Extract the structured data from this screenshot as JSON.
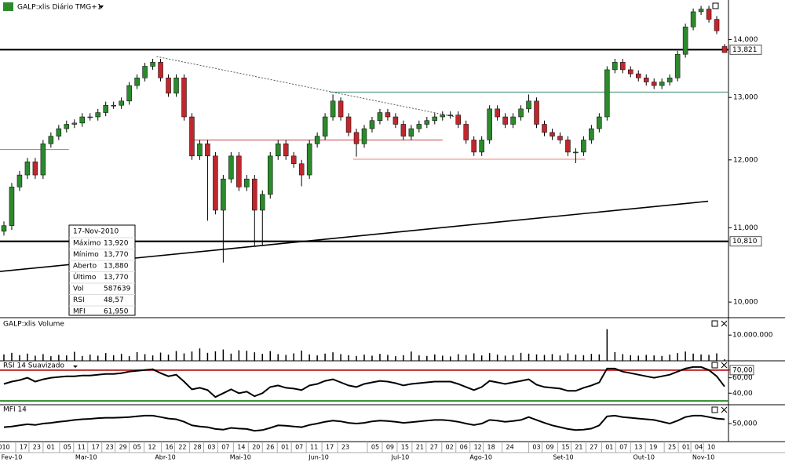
{
  "chart_data": {
    "type": "candlestick",
    "title": "GALP:xlis Diário TMG+1",
    "log_scale": true,
    "ylim": [
      9.802,
      14.73
    ],
    "yticks": [
      {
        "value": 14,
        "label": "14,000"
      },
      {
        "value": 13,
        "label": "13,000"
      },
      {
        "value": 12,
        "label": "12,000"
      },
      {
        "value": 11,
        "label": "11,000"
      },
      {
        "value": 10,
        "label": "10,000"
      }
    ],
    "xlim": [
      0,
      93
    ],
    "xticks": [
      {
        "value": 0.5,
        "label": "010"
      },
      {
        "value": 3.0,
        "label": "17"
      },
      {
        "value": 4.7,
        "label": "23"
      },
      {
        "value": 6.5,
        "label": "01"
      },
      {
        "value": 8.6,
        "label": "05"
      },
      {
        "value": 10.4,
        "label": "11"
      },
      {
        "value": 12.2,
        "label": "17"
      },
      {
        "value": 14.0,
        "label": "23"
      },
      {
        "value": 15.7,
        "label": "29"
      },
      {
        "value": 17.5,
        "label": "05"
      },
      {
        "value": 19.4,
        "label": "12"
      },
      {
        "value": 21.6,
        "label": "16"
      },
      {
        "value": 23.3,
        "label": "22"
      },
      {
        "value": 25.2,
        "label": "28"
      },
      {
        "value": 27.0,
        "label": "03"
      },
      {
        "value": 28.8,
        "label": "07"
      },
      {
        "value": 30.8,
        "label": "14"
      },
      {
        "value": 32.7,
        "label": "20"
      },
      {
        "value": 34.5,
        "label": "26"
      },
      {
        "value": 36.4,
        "label": "01"
      },
      {
        "value": 38.2,
        "label": "07"
      },
      {
        "value": 40.1,
        "label": "11"
      },
      {
        "value": 42.1,
        "label": "17"
      },
      {
        "value": 44.1,
        "label": "23"
      },
      {
        "value": 47.9,
        "label": "05"
      },
      {
        "value": 49.8,
        "label": "09"
      },
      {
        "value": 51.7,
        "label": "15"
      },
      {
        "value": 53.6,
        "label": "21"
      },
      {
        "value": 55.4,
        "label": "27"
      },
      {
        "value": 57.4,
        "label": "02"
      },
      {
        "value": 59.2,
        "label": "06"
      },
      {
        "value": 61.0,
        "label": "12"
      },
      {
        "value": 62.7,
        "label": "18"
      },
      {
        "value": 65.1,
        "label": "24"
      },
      {
        "value": 68.5,
        "label": "03"
      },
      {
        "value": 70.2,
        "label": "09"
      },
      {
        "value": 72.2,
        "label": "15"
      },
      {
        "value": 73.9,
        "label": "21"
      },
      {
        "value": 75.8,
        "label": "27"
      },
      {
        "value": 77.8,
        "label": "01"
      },
      {
        "value": 79.6,
        "label": "07"
      },
      {
        "value": 81.5,
        "label": "13"
      },
      {
        "value": 83.4,
        "label": "19"
      },
      {
        "value": 85.8,
        "label": "25"
      },
      {
        "value": 87.6,
        "label": "01"
      },
      {
        "value": 89.2,
        "label": "04"
      },
      {
        "value": 90.8,
        "label": "10"
      }
    ],
    "month_ticks": [
      {
        "value": 1.5,
        "label": "Fev-10"
      },
      {
        "value": 11.0,
        "label": "Mar-10"
      },
      {
        "value": 21.1,
        "label": "Abr-10"
      },
      {
        "value": 30.7,
        "label": "Mai-10"
      },
      {
        "value": 40.7,
        "label": "Jun-10"
      },
      {
        "value": 51.1,
        "label": "Jul-10"
      },
      {
        "value": 61.4,
        "label": "Ago-10"
      },
      {
        "value": 71.9,
        "label": "Set-10"
      },
      {
        "value": 82.2,
        "label": "Out-10"
      },
      {
        "value": 89.8,
        "label": "Nov-10"
      }
    ],
    "up_color": "#2b8a2b",
    "down_color": "#c0272d",
    "open": [
      10.95,
      11.03,
      11.59,
      11.77,
      11.97,
      11.77,
      12.25,
      12.37,
      12.49,
      12.56,
      12.58,
      12.68,
      12.68,
      12.75,
      12.87,
      12.87,
      12.94,
      13.2,
      13.33,
      13.53,
      13.6,
      13.33,
      13.07,
      13.33,
      12.68,
      12.06,
      12.25,
      12.06,
      11.25,
      11.71,
      12.06,
      11.59,
      11.71,
      11.25,
      11.48,
      12.06,
      12.25,
      12.06,
      11.94,
      11.77,
      12.25,
      12.37,
      12.68,
      12.94,
      12.68,
      12.43,
      12.25,
      12.49,
      12.62,
      12.75,
      12.68,
      12.56,
      12.37,
      12.49,
      12.56,
      12.62,
      12.68,
      12.71,
      12.71,
      12.56,
      12.31,
      12.12,
      12.31,
      12.81,
      12.68,
      12.56,
      12.68,
      12.81,
      12.94,
      12.56,
      12.43,
      12.37,
      12.31,
      12.12,
      12.12,
      12.31,
      12.49,
      12.68,
      13.47,
      13.6,
      13.47,
      13.4,
      13.33,
      13.26,
      13.2,
      13.26,
      13.33,
      13.74,
      14.23,
      14.51,
      14.56,
      14.37,
      13.88
    ],
    "high": [
      11.09,
      11.65,
      11.83,
      12.03,
      12.03,
      12.31,
      12.43,
      12.55,
      12.62,
      12.64,
      12.74,
      12.74,
      12.81,
      12.93,
      12.93,
      13.0,
      13.26,
      13.39,
      13.59,
      13.66,
      13.66,
      13.39,
      13.39,
      13.39,
      12.74,
      12.31,
      12.31,
      12.12,
      11.77,
      12.12,
      12.12,
      11.77,
      11.77,
      11.54,
      12.12,
      12.31,
      12.31,
      12.12,
      12.0,
      12.31,
      12.43,
      12.74,
      13.05,
      13.0,
      12.74,
      12.49,
      12.55,
      12.68,
      12.81,
      12.81,
      12.74,
      12.62,
      12.55,
      12.62,
      12.68,
      12.74,
      12.77,
      12.77,
      12.77,
      12.62,
      12.37,
      12.37,
      12.87,
      12.87,
      12.74,
      12.74,
      12.87,
      13.05,
      13.0,
      12.62,
      12.49,
      12.43,
      12.37,
      12.18,
      12.37,
      12.55,
      12.74,
      13.53,
      13.66,
      13.66,
      13.53,
      13.46,
      13.39,
      13.32,
      13.32,
      13.39,
      13.8,
      14.29,
      14.57,
      14.62,
      14.62,
      14.43,
      13.92
    ],
    "low": [
      10.89,
      10.97,
      11.53,
      11.71,
      11.71,
      11.71,
      12.19,
      12.31,
      12.43,
      12.5,
      12.52,
      12.62,
      12.62,
      12.69,
      12.81,
      12.81,
      12.88,
      13.14,
      13.27,
      13.47,
      13.27,
      13.01,
      13.01,
      12.62,
      12.0,
      12.0,
      11.1,
      11.19,
      10.52,
      11.65,
      11.53,
      11.53,
      10.75,
      10.75,
      11.42,
      12.0,
      12.0,
      11.88,
      11.6,
      11.71,
      12.19,
      12.31,
      12.62,
      12.62,
      12.37,
      12.05,
      12.19,
      12.43,
      12.56,
      12.62,
      12.5,
      12.31,
      12.31,
      12.43,
      12.5,
      12.56,
      12.62,
      12.65,
      12.5,
      12.25,
      12.06,
      12.06,
      12.25,
      12.62,
      12.5,
      12.5,
      12.62,
      12.75,
      12.5,
      12.37,
      12.31,
      12.25,
      12.06,
      11.95,
      12.06,
      12.25,
      12.43,
      12.62,
      13.41,
      13.41,
      13.34,
      13.27,
      13.2,
      13.14,
      13.14,
      13.2,
      13.27,
      13.68,
      14.17,
      14.45,
      14.31,
      14.1,
      13.77
    ],
    "close": [
      11.03,
      11.59,
      11.77,
      11.97,
      11.77,
      12.25,
      12.37,
      12.49,
      12.56,
      12.58,
      12.68,
      12.68,
      12.75,
      12.87,
      12.87,
      12.94,
      13.2,
      13.33,
      13.53,
      13.6,
      13.33,
      13.07,
      13.33,
      12.68,
      12.06,
      12.25,
      12.06,
      11.25,
      11.71,
      12.06,
      11.59,
      11.71,
      11.25,
      11.48,
      12.06,
      12.25,
      12.06,
      11.94,
      11.77,
      12.25,
      12.37,
      12.68,
      12.94,
      12.68,
      12.43,
      12.25,
      12.49,
      12.62,
      12.75,
      12.68,
      12.56,
      12.37,
      12.49,
      12.56,
      12.62,
      12.68,
      12.71,
      12.71,
      12.56,
      12.31,
      12.12,
      12.31,
      12.81,
      12.68,
      12.56,
      12.68,
      12.81,
      12.94,
      12.56,
      12.43,
      12.37,
      12.31,
      12.12,
      12.12,
      12.31,
      12.49,
      12.68,
      13.47,
      13.6,
      13.47,
      13.4,
      13.33,
      13.26,
      13.2,
      13.26,
      13.33,
      13.74,
      14.23,
      14.51,
      14.56,
      14.37,
      14.16,
      13.77
    ],
    "levels": [
      {
        "value": 13.821,
        "label": "13,821"
      },
      {
        "value": 10.81,
        "label": "10,810"
      }
    ],
    "trendlines": [
      {
        "x": [
          0,
          90.4
        ],
        "y": [
          10.4,
          11.38
        ],
        "color": "#000",
        "dash": false
      },
      {
        "x": [
          20.0,
          58.1
        ],
        "y": [
          13.7,
          12.68
        ],
        "color": "#555",
        "dash": true
      },
      {
        "x": [
          0,
          8.8
        ],
        "y": [
          12.16,
          12.16
        ],
        "color": "#888",
        "dash": false
      },
      {
        "x": [
          24.8,
          56.5
        ],
        "y": [
          12.31,
          12.31
        ],
        "color": "#c04040",
        "dash": false
      },
      {
        "x": [
          45.1,
          74.7
        ],
        "y": [
          12.01,
          12.01
        ],
        "color": "#f08080",
        "dash": false
      },
      {
        "x": [
          42.1,
          93
        ],
        "y": [
          13.09,
          13.09
        ],
        "color": "#3a8a6a",
        "dash": false
      }
    ],
    "info": {
      "date": "17-Nov-2010",
      "rows": [
        [
          "Máximo",
          "13,920"
        ],
        [
          "Mínimo",
          "13,770"
        ],
        [
          "Aberto",
          "13,880"
        ],
        [
          "Último",
          "13,770"
        ],
        [
          "Vol",
          "587639"
        ],
        [
          "RSI",
          "48,57"
        ],
        [
          "MFI",
          "61,950"
        ]
      ]
    },
    "panels": [
      {
        "type": "bar",
        "title": "GALP:xlis Volume",
        "color": "#000",
        "ylim": [
          0,
          12500000
        ],
        "yticks": [
          {
            "value": 10000000,
            "label": "10.000.000"
          }
        ],
        "values": [
          2500000,
          3100000,
          2200000,
          2800000,
          2000000,
          2600000,
          1800000,
          2300000,
          2100000,
          3500000,
          1900000,
          2400000,
          2000000,
          3000000,
          2200000,
          2700000,
          1800000,
          3400000,
          2600000,
          2100000,
          3200000,
          2400000,
          3800000,
          2900000,
          3600000,
          4800000,
          3100000,
          3700000,
          4400000,
          2800000,
          4100000,
          3900000,
          3300000,
          2700000,
          3800000,
          2600000,
          2300000,
          2900000,
          4000000,
          2500000,
          2100000,
          2800000,
          3300000,
          2600000,
          2200000,
          1900000,
          2400000,
          2000000,
          2700000,
          2300000,
          1800000,
          2200000,
          3600000,
          2100000,
          1900000,
          2500000,
          2000000,
          1700000,
          2600000,
          2300000,
          2900000,
          2100000,
          3000000,
          2400000,
          2000000,
          2200000,
          3100000,
          2800000,
          2500000,
          2300000,
          2600000,
          2100000,
          2900000,
          2400000,
          2200000,
          2700000,
          2500000,
          12300000,
          3400000,
          2600000,
          2200000,
          2000000,
          2300000,
          2100000,
          1900000,
          2400000,
          3000000,
          3600000,
          2800000,
          2500000,
          2300000,
          2900000,
          587639
        ]
      },
      {
        "type": "line",
        "title": "RSI 14 Suavizado",
        "color": "#000",
        "ylim": [
          26,
          80
        ],
        "yticks": [
          {
            "value": 70,
            "label": "70,00"
          },
          {
            "value": 60,
            "label": "60,00"
          },
          {
            "value": 40,
            "label": "40,00"
          }
        ],
        "levels": [
          {
            "value": 70,
            "color": "#c0272d"
          },
          {
            "value": 30,
            "color": "#2b8a2b"
          }
        ],
        "values": [
          52,
          55,
          57,
          60,
          55,
          58,
          60,
          61,
          62,
          62,
          63,
          63,
          64,
          65,
          65,
          66,
          68,
          69,
          70,
          71,
          66,
          62,
          64,
          55,
          45,
          47,
          44,
          35,
          40,
          45,
          40,
          42,
          36,
          40,
          48,
          50,
          47,
          46,
          44,
          50,
          52,
          56,
          58,
          54,
          50,
          48,
          52,
          54,
          56,
          55,
          53,
          50,
          52,
          53,
          54,
          55,
          55,
          55,
          52,
          48,
          44,
          48,
          56,
          54,
          52,
          54,
          56,
          58,
          51,
          48,
          47,
          46,
          43,
          43,
          47,
          50,
          54,
          72,
          72,
          68,
          66,
          64,
          62,
          60,
          62,
          64,
          68,
          72,
          74,
          74,
          70,
          62,
          48.57
        ]
      },
      {
        "type": "line",
        "title": "MFI 14",
        "color": "#000",
        "ylim": [
          0,
          100
        ],
        "yticks": [
          {
            "value": 50,
            "label": "50,000"
          }
        ],
        "values": [
          40,
          42,
          45,
          48,
          46,
          50,
          52,
          55,
          57,
          60,
          62,
          63,
          65,
          66,
          66,
          67,
          68,
          70,
          72,
          72,
          68,
          64,
          62,
          55,
          45,
          42,
          40,
          35,
          33,
          38,
          36,
          35,
          30,
          32,
          38,
          45,
          44,
          42,
          40,
          46,
          50,
          55,
          58,
          56,
          52,
          50,
          52,
          56,
          58,
          57,
          55,
          52,
          54,
          56,
          58,
          60,
          60,
          58,
          55,
          50,
          46,
          50,
          60,
          58,
          55,
          57,
          60,
          68,
          60,
          52,
          45,
          40,
          35,
          32,
          33,
          36,
          45,
          70,
          72,
          68,
          66,
          64,
          62,
          60,
          55,
          50,
          58,
          68,
          72,
          72,
          68,
          64,
          61.95
        ]
      }
    ]
  }
}
